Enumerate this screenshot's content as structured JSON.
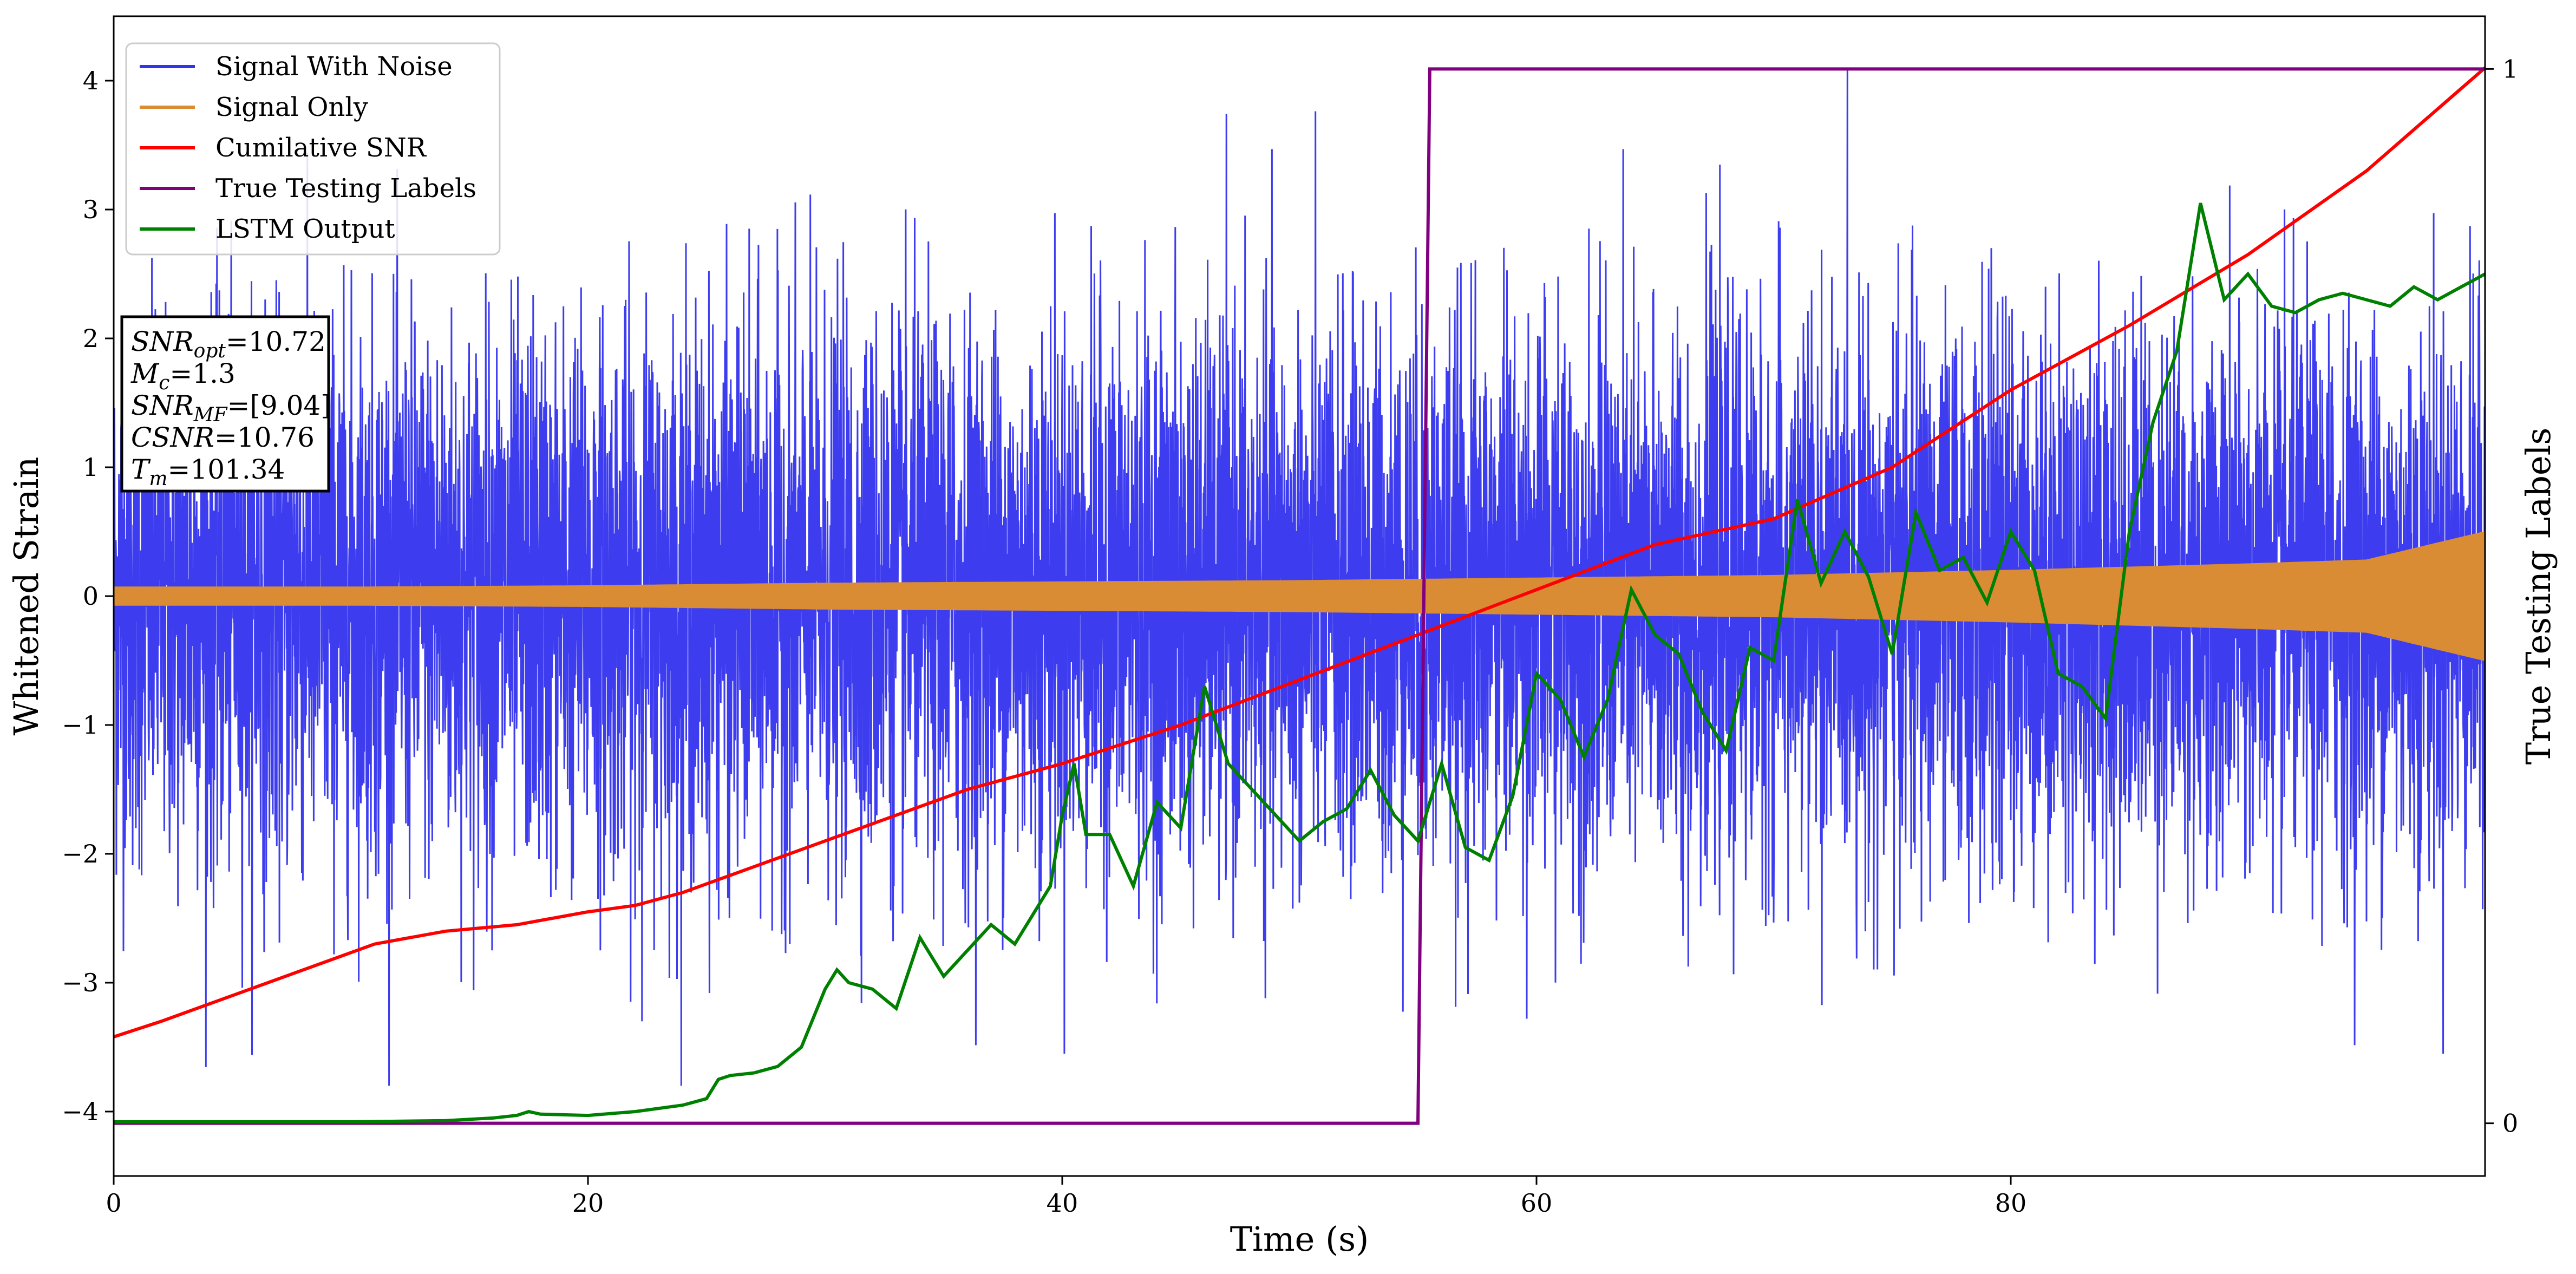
{
  "chart_data": {
    "type": "line",
    "xlabel": "Time (s)",
    "ylabel": "Whitened Strain",
    "y2label": "True Testing Labels",
    "xlim": [
      0,
      100
    ],
    "ylim": [
      -4.5,
      4.5
    ],
    "y2lim": [
      -0.05,
      1.05
    ],
    "x_ticks": [
      0,
      20,
      40,
      60,
      80
    ],
    "y_ticks": [
      -4,
      -3,
      -2,
      -1,
      0,
      1,
      2,
      3,
      4
    ],
    "y2_ticks": [
      0,
      1
    ],
    "grid": false,
    "legend_position": "top-left",
    "annotation": [
      {
        "base": "SNR",
        "sub": "opt",
        "value": "=10.72"
      },
      {
        "base": "M",
        "sub": "c",
        "value": "=1.3"
      },
      {
        "base": "SNR",
        "sub": "MF",
        "value": "=[9.04]"
      },
      {
        "base": "CSNR",
        "sub": "",
        "value": "=10.76"
      },
      {
        "base": "T",
        "sub": "m",
        "value": "=101.34"
      }
    ],
    "series": [
      {
        "name": "Signal With Noise",
        "color": "#3333ee",
        "axis": "left",
        "description_values": {
          "mean": 0,
          "std": 1.0,
          "min": -3.8,
          "max": 4.1
        }
      },
      {
        "name": "Signal Only",
        "color": "#d98c33",
        "axis": "left",
        "x": [
          0,
          10,
          20,
          30,
          40,
          50,
          60,
          70,
          80,
          90,
          95,
          100
        ],
        "amplitude": [
          0.07,
          0.07,
          0.08,
          0.1,
          0.11,
          0.12,
          0.14,
          0.16,
          0.2,
          0.25,
          0.28,
          0.5
        ]
      },
      {
        "name": "Cumilative SNR",
        "color": "#ff0000",
        "axis": "left",
        "x": [
          0,
          2,
          5,
          8,
          11,
          14,
          17,
          20,
          22,
          24,
          27,
          30,
          33,
          36,
          40,
          45,
          50,
          55,
          60,
          65,
          70,
          75,
          80,
          85,
          90,
          95,
          100
        ],
        "y": [
          -3.42,
          -3.3,
          -3.1,
          -2.9,
          -2.7,
          -2.6,
          -2.55,
          -2.45,
          -2.4,
          -2.3,
          -2.1,
          -1.9,
          -1.7,
          -1.5,
          -1.3,
          -1.0,
          -0.65,
          -0.3,
          0.05,
          0.4,
          0.6,
          1.0,
          1.6,
          2.1,
          2.65,
          3.3,
          4.1
        ]
      },
      {
        "name": "True Testing Labels",
        "color": "#800080",
        "axis": "right",
        "x": [
          0,
          55,
          55.5,
          100
        ],
        "y": [
          0,
          0,
          1,
          1
        ]
      },
      {
        "name": "LSTM Output",
        "color": "#008000",
        "axis": "left",
        "x": [
          0,
          5,
          10,
          14,
          16,
          17,
          17.5,
          18,
          20,
          22,
          24,
          25,
          25.5,
          26,
          27,
          28,
          29,
          30,
          30.5,
          31,
          32,
          33,
          34,
          35,
          36,
          37,
          38,
          39,
          39.5,
          40,
          40.5,
          41,
          42,
          43,
          44,
          45,
          46,
          47,
          48,
          49,
          50,
          51,
          52,
          53,
          54,
          55,
          56,
          57,
          58,
          59,
          60,
          61,
          62,
          63,
          64,
          65,
          66,
          67,
          68,
          69,
          70,
          71,
          72,
          73,
          74,
          75,
          76,
          77,
          78,
          79,
          80,
          81,
          82,
          83,
          84,
          85,
          86,
          87,
          88,
          89,
          90,
          91,
          92,
          93,
          94,
          95,
          96,
          97,
          98,
          99,
          100
        ],
        "y": [
          -4.08,
          -4.08,
          -4.08,
          -4.07,
          -4.05,
          -4.03,
          -4.0,
          -4.02,
          -4.03,
          -4.0,
          -3.95,
          -3.9,
          -3.75,
          -3.72,
          -3.7,
          -3.65,
          -3.5,
          -3.05,
          -2.9,
          -3.0,
          -3.05,
          -3.2,
          -2.65,
          -2.95,
          -2.75,
          -2.55,
          -2.7,
          -2.4,
          -2.25,
          -1.7,
          -1.3,
          -1.85,
          -1.85,
          -2.25,
          -1.6,
          -1.8,
          -0.7,
          -1.3,
          -1.5,
          -1.7,
          -1.9,
          -1.75,
          -1.65,
          -1.35,
          -1.7,
          -1.9,
          -1.3,
          -1.95,
          -2.05,
          -1.55,
          -0.6,
          -0.8,
          -1.25,
          -0.8,
          0.05,
          -0.3,
          -0.45,
          -0.9,
          -1.2,
          -0.4,
          -0.5,
          0.75,
          0.1,
          0.5,
          0.15,
          -0.45,
          0.65,
          0.2,
          0.3,
          -0.05,
          0.5,
          0.2,
          -0.6,
          -0.7,
          -0.95,
          0.5,
          1.35,
          1.9,
          3.05,
          2.3,
          2.5,
          2.25,
          2.2,
          2.3,
          2.35,
          2.3,
          2.25,
          2.4,
          2.3,
          2.4,
          2.5
        ]
      }
    ]
  }
}
